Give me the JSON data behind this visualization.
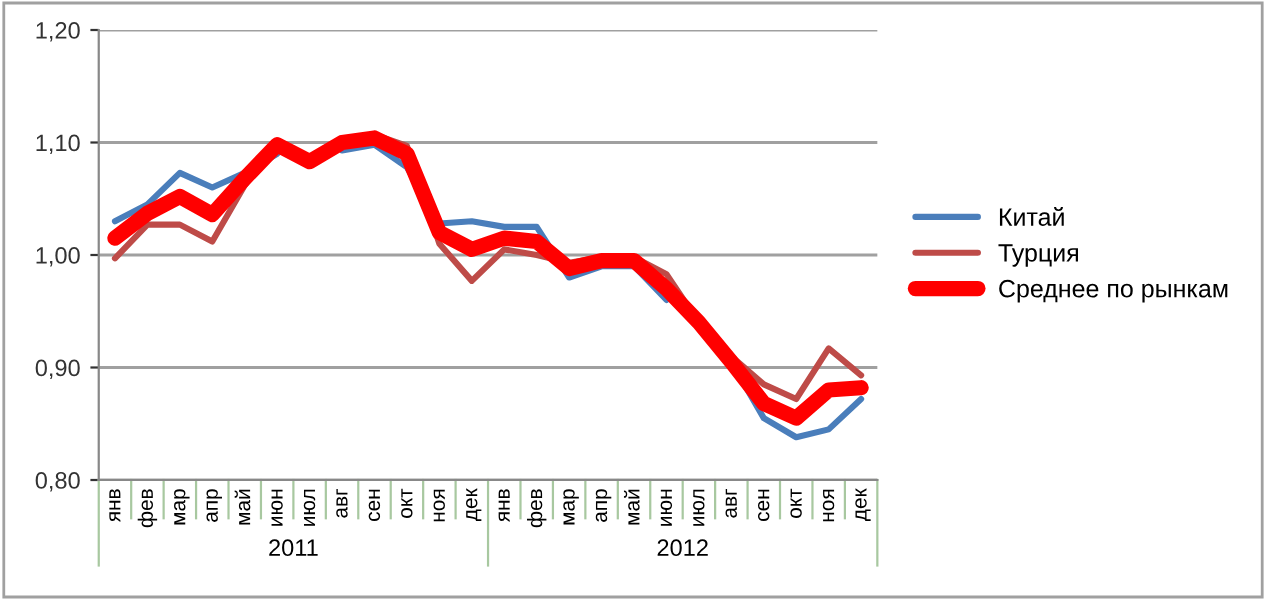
{
  "chart_data": {
    "type": "line",
    "categories": [
      "янв",
      "фев",
      "мар",
      "апр",
      "май",
      "июн",
      "июл",
      "авг",
      "сен",
      "окт",
      "ноя",
      "дек",
      "янв",
      "фев",
      "мар",
      "апр",
      "май",
      "июн",
      "июл",
      "авг",
      "сен",
      "окт",
      "ноя",
      "дек"
    ],
    "annotations": [
      "2011",
      "2012"
    ],
    "series": [
      {
        "name": "Китай",
        "color": "#4a7ebb",
        "values": [
          1.03,
          1.045,
          1.073,
          1.06,
          1.073,
          1.09,
          null,
          1.093,
          1.098,
          1.078,
          1.028,
          1.03,
          1.025,
          1.025,
          0.98,
          0.99,
          0.99,
          0.96,
          null,
          0.905,
          0.855,
          0.838,
          0.845,
          0.872
        ]
      },
      {
        "name": "Турция",
        "color": "#be4b48",
        "values": [
          0.997,
          1.027,
          1.027,
          1.012,
          1.062,
          1.097,
          1.085,
          1.103,
          1.107,
          1.097,
          1.01,
          0.977,
          1.005,
          1.0,
          0.993,
          0.998,
          0.998,
          0.983,
          0.94,
          0.91,
          0.885,
          0.872,
          0.917,
          0.893
        ]
      },
      {
        "name": "Среднее по рынкам",
        "color": "#ff0000",
        "values": [
          1.015,
          1.037,
          1.052,
          1.036,
          1.068,
          1.098,
          1.083,
          1.1,
          1.104,
          1.09,
          1.02,
          1.005,
          1.015,
          1.012,
          0.988,
          0.995,
          0.995,
          0.97,
          0.94,
          0.905,
          0.868,
          0.855,
          0.88,
          0.882
        ]
      }
    ],
    "ylim": [
      0.8,
      1.2
    ],
    "yticks": [
      {
        "value": 0.8,
        "label": "0,80"
      },
      {
        "value": 0.9,
        "label": "0,90"
      },
      {
        "value": 1.0,
        "label": "1,00"
      },
      {
        "value": 1.1,
        "label": "1,10"
      },
      {
        "value": 1.2,
        "label": "1,20"
      }
    ],
    "grid": "y",
    "legend": "right",
    "marker": "none",
    "line_style": "solid"
  }
}
